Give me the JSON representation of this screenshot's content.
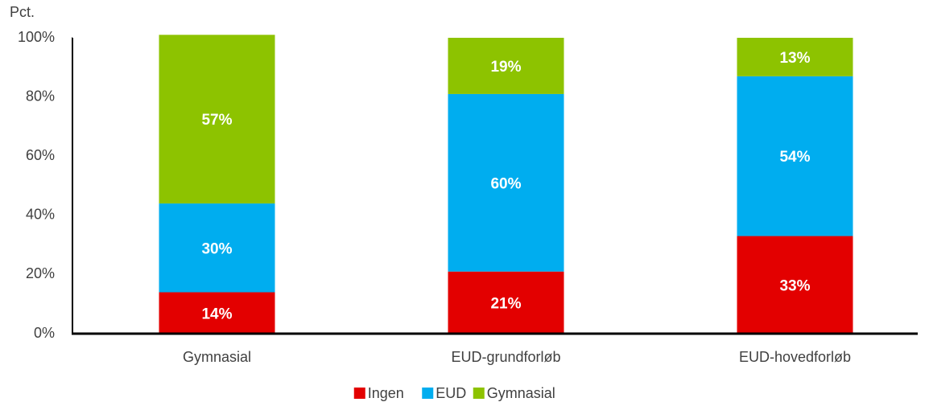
{
  "chart_data": {
    "type": "stacked_bar",
    "y_label": "Pct.",
    "categories": [
      "Gymnasial",
      "EUD-grundforløb",
      "EUD-hovedforløb"
    ],
    "series": [
      {
        "name": "Ingen",
        "color": "#e30000",
        "values": [
          14,
          21,
          33
        ],
        "value_labels": [
          "14%",
          "21%",
          "33%"
        ]
      },
      {
        "name": "EUD",
        "color": "#00adef",
        "values": [
          30,
          60,
          54
        ],
        "value_labels": [
          "30%",
          "60%",
          "54%"
        ]
      },
      {
        "name": "Gymnasial",
        "color": "#8dc300",
        "values": [
          57,
          19,
          13
        ],
        "value_labels": [
          "57%",
          "19%",
          "13%"
        ]
      }
    ],
    "ylim": [
      0,
      100
    ],
    "yticks": [
      {
        "value": 0,
        "label": "0%"
      },
      {
        "value": 20,
        "label": "20%"
      },
      {
        "value": 40,
        "label": "40%"
      },
      {
        "value": 60,
        "label": "60%"
      },
      {
        "value": 80,
        "label": "80%"
      },
      {
        "value": 100,
        "label": "100%"
      }
    ],
    "legend": "bottom"
  }
}
